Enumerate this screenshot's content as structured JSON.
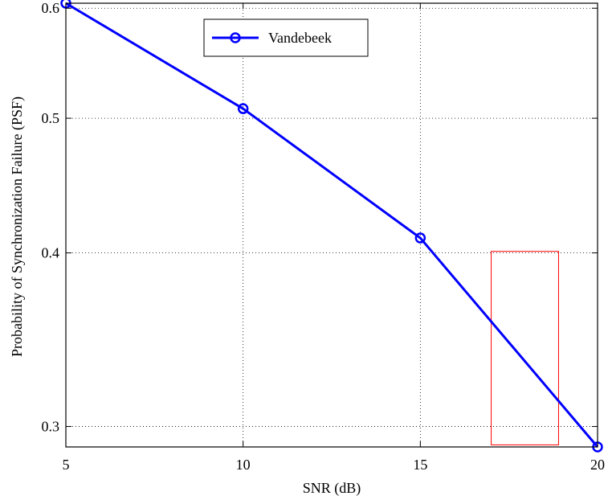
{
  "chart_data": {
    "type": "line",
    "xlabel": "SNR (dB)",
    "ylabel": "Probability of Synchronization Failure (PSF)",
    "x_ticks": [
      "5",
      "10",
      "15",
      "20"
    ],
    "y_ticks": [
      "0.3",
      "0.4",
      "0.5",
      "0.6"
    ],
    "xlim": [
      5,
      20
    ],
    "ylim": [
      0.29,
      0.605
    ],
    "y_scale": "log",
    "grid": true,
    "legend_position": "top-center",
    "series": [
      {
        "name": "Vandebeek",
        "color": "#0000ff",
        "marker": "circle",
        "x": [
          5,
          10,
          15,
          20
        ],
        "y": [
          0.605,
          0.508,
          0.41,
          0.29
        ]
      }
    ],
    "annotation": {
      "type": "rectangle",
      "color": "#ff0000",
      "x_range": [
        17.0,
        18.9
      ],
      "y_range": [
        0.291,
        0.401
      ]
    }
  }
}
